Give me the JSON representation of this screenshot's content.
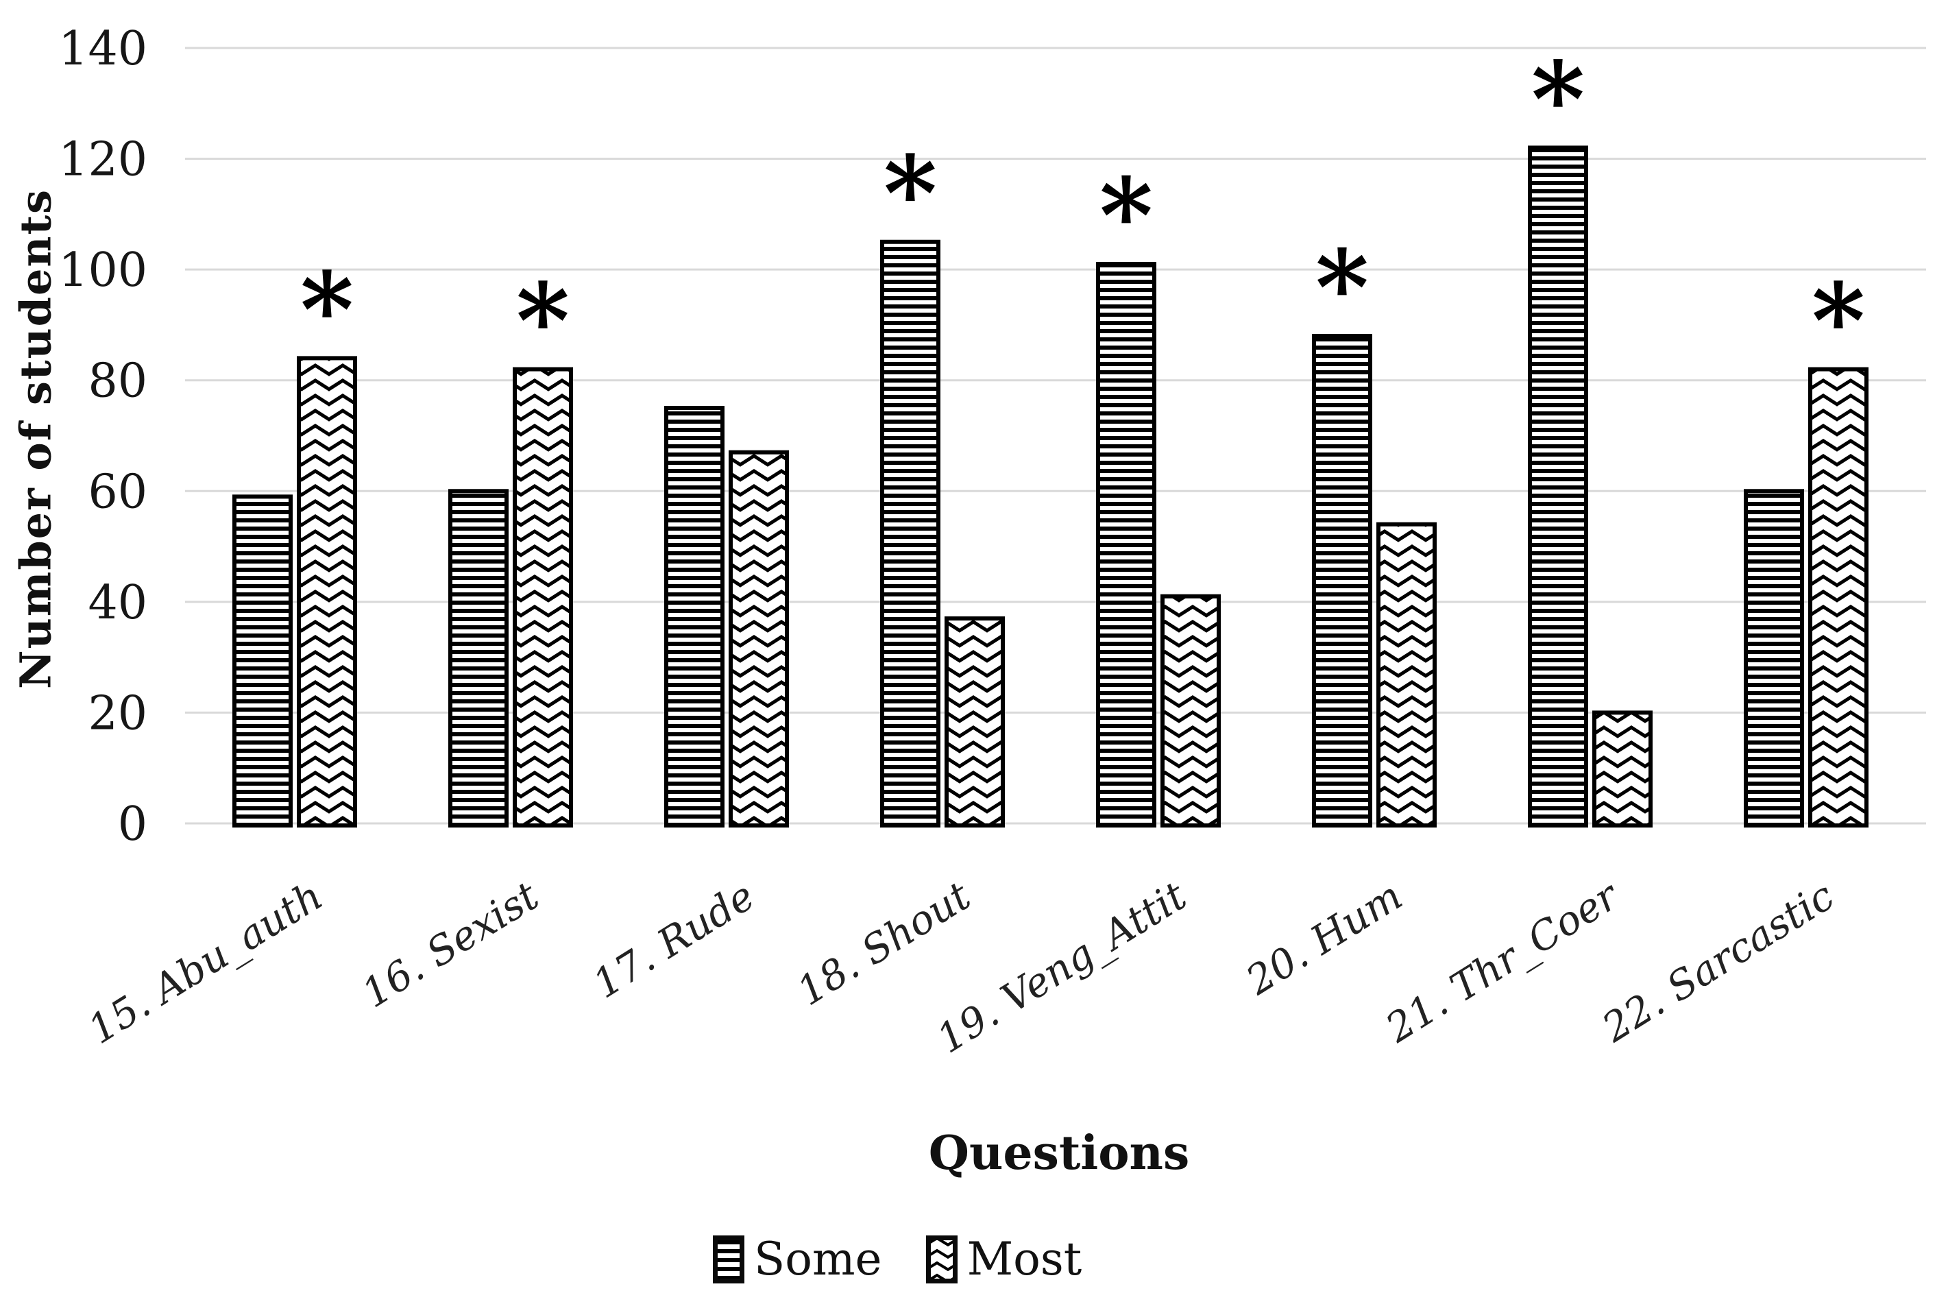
{
  "chart_data": {
    "type": "bar",
    "title": "",
    "xlabel": "Questions",
    "ylabel": "Number of students",
    "ylim": [
      0,
      140
    ],
    "yticks": [
      0,
      20,
      40,
      60,
      80,
      100,
      120,
      140
    ],
    "grid": "horizontal",
    "gridline_color": "#d9d9d9",
    "bar_outline_color": "#000000",
    "background_color": "#ffffff",
    "legend_position": "bottom",
    "categories": [
      "15. Abu_auth",
      "16. Sexist",
      "17. Rude",
      "18. Shout",
      "19. Veng_Attit",
      "20. Hum",
      "21. Thr_Coer",
      "22. Sarcastic"
    ],
    "series": [
      {
        "name": "Some",
        "pattern": "horizontal-stripes",
        "values": [
          59,
          60,
          75,
          105,
          101,
          88,
          122,
          60
        ]
      },
      {
        "name": "Most",
        "pattern": "chevron",
        "values": [
          84,
          82,
          67,
          37,
          41,
          54,
          20,
          82
        ]
      }
    ],
    "significance_marker": "*",
    "significant_series_per_category": [
      "Most",
      "Most",
      null,
      "Some",
      "Some",
      "Some",
      "Some",
      "Most"
    ]
  }
}
